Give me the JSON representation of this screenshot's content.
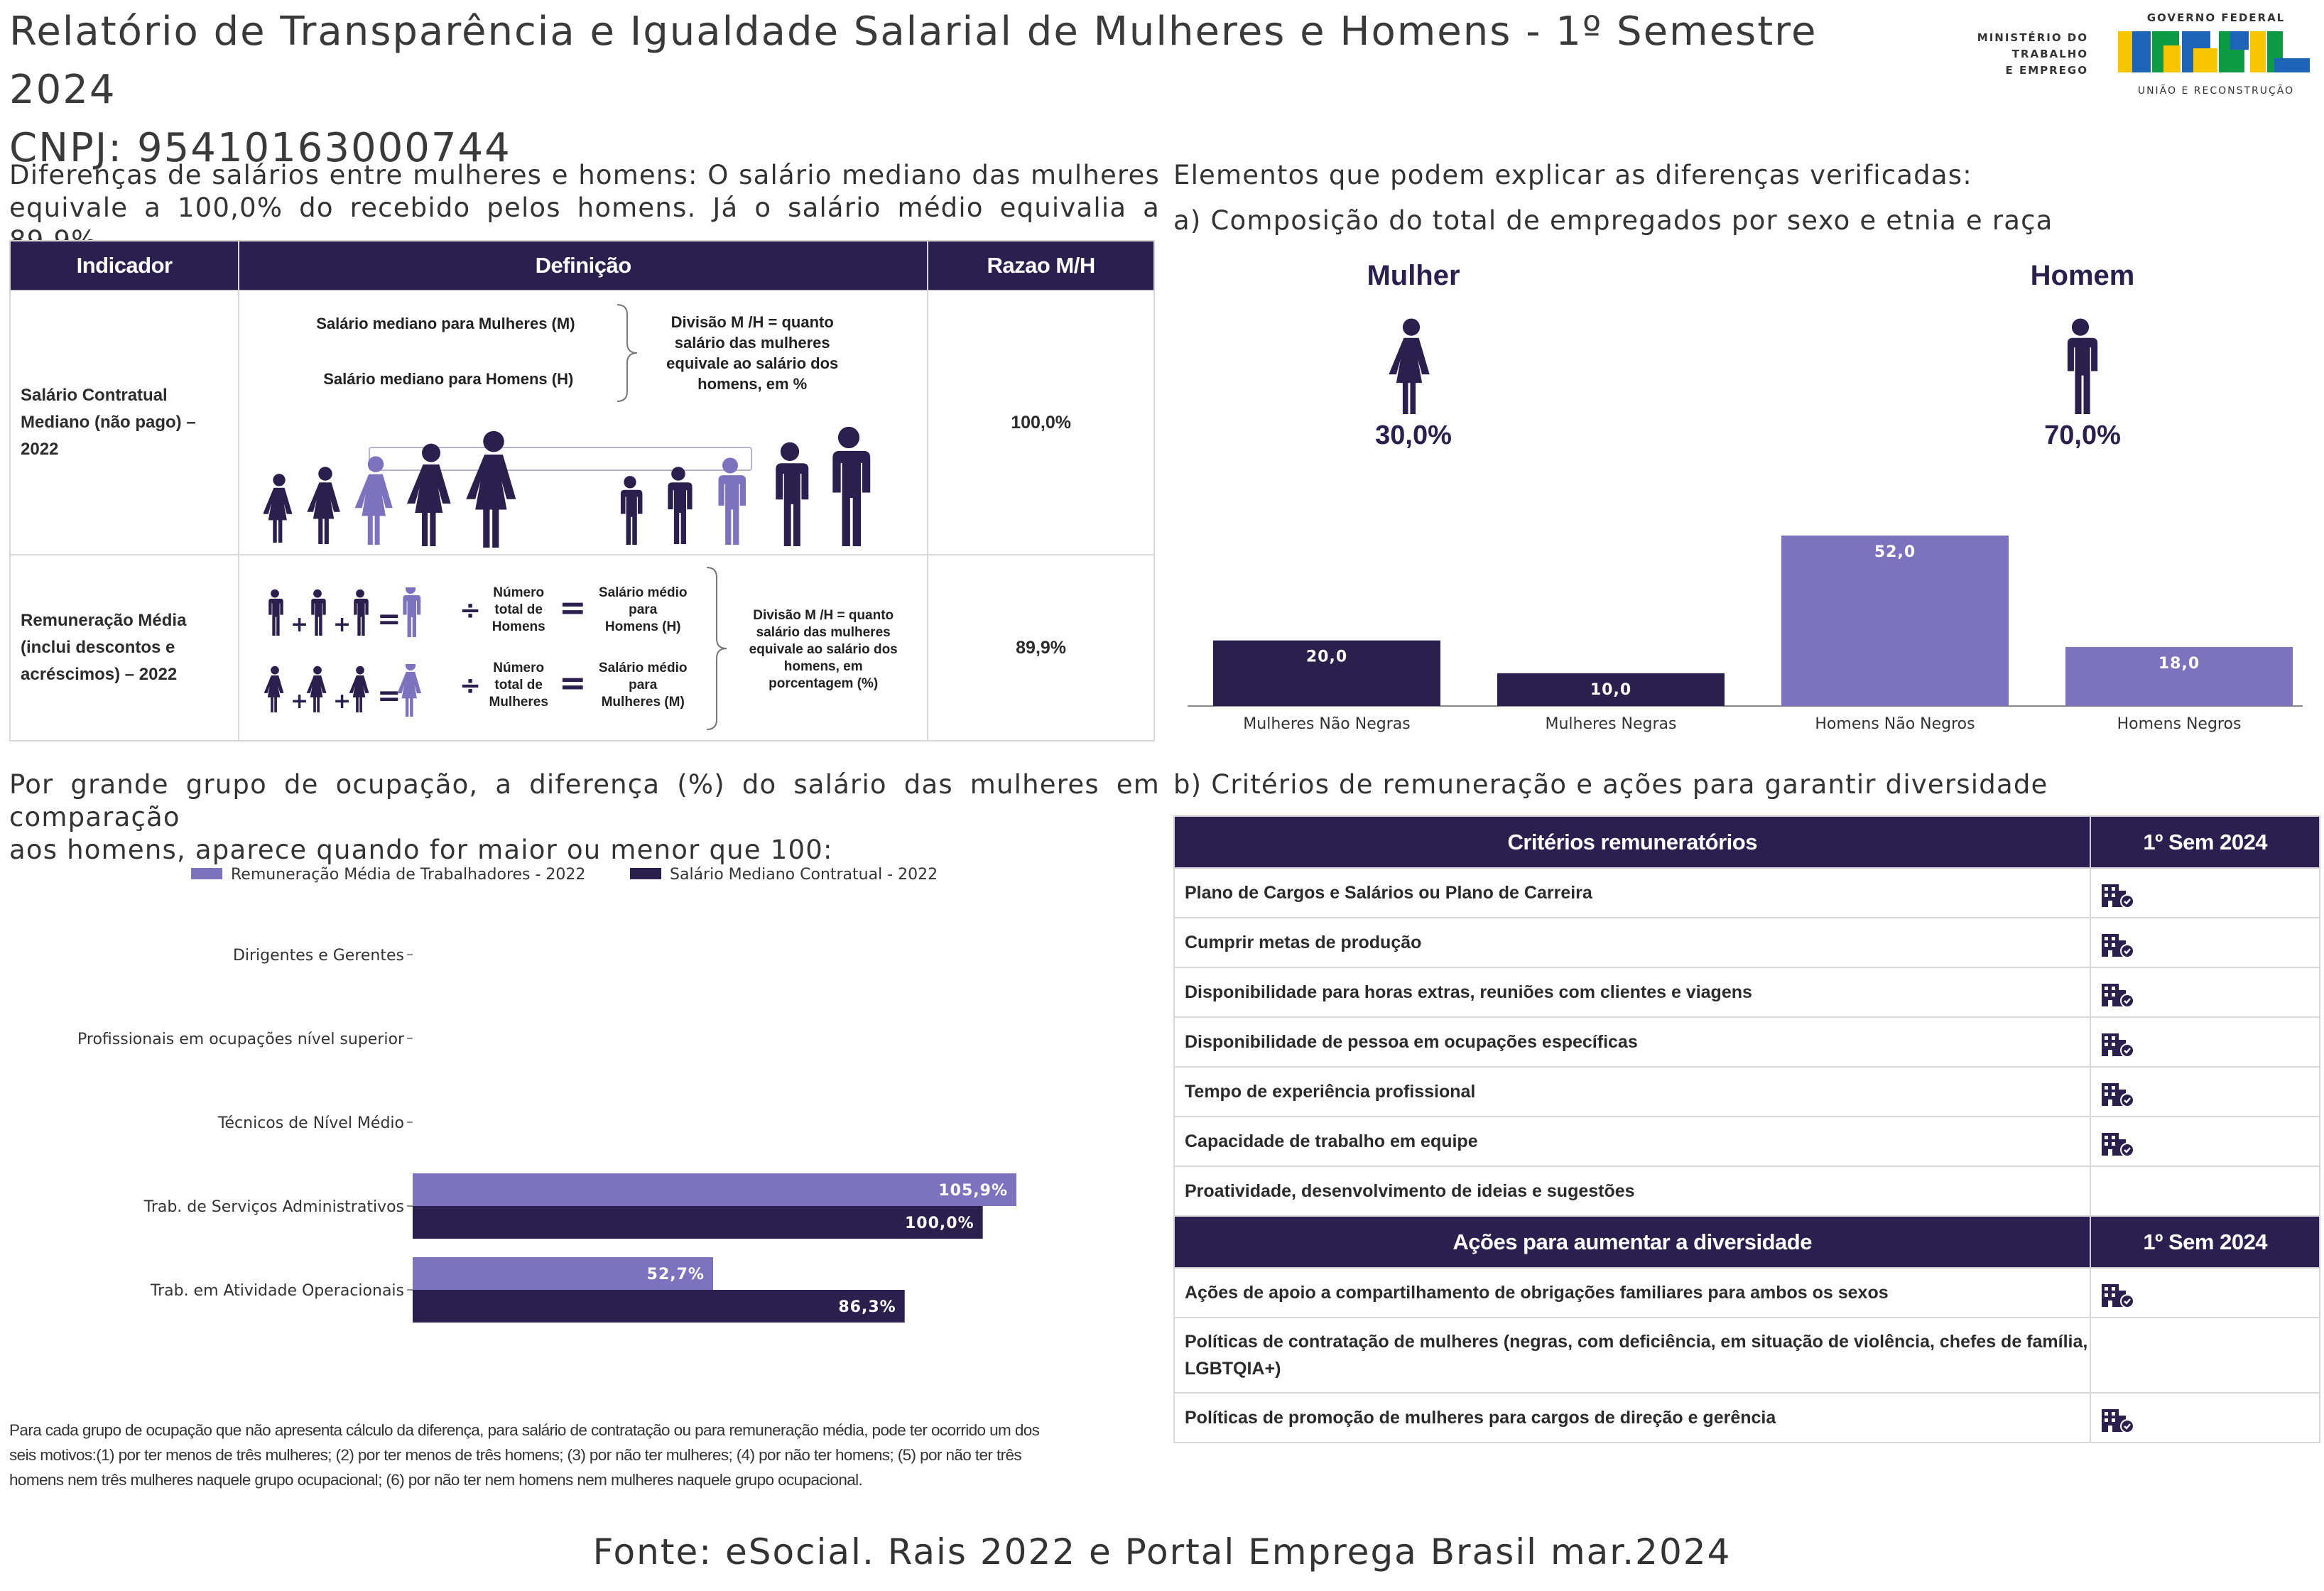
{
  "header": {
    "title_line1": "Relatório de Transparência e Igualdade Salarial de Mulheres e Homens - 1º Semestre 2024",
    "title_line2": "CNPJ: 95410163000744"
  },
  "logos": {
    "ministry_line1": "MINISTÉRIO DO",
    "ministry_line2": "TRABALHO",
    "ministry_line3": "E EMPREGO",
    "gov_top": "GOVERNO FEDERAL",
    "gov_brand": "BRASIL",
    "gov_bottom": "UNIÃO E RECONSTRUÇÃO"
  },
  "left_intro": {
    "line1": "Diferenças de salários entre mulheres e homens: O salário mediano das mulheres",
    "line2": "equivale a 100,0% do recebido pelos homens. Já o salário médio equivalia a 89,9%"
  },
  "indicator_table": {
    "headers": [
      "Indicador",
      "Definição",
      "Razao M/H"
    ],
    "row1": {
      "indicator": "Salário Contratual Mediano (não pago) – 2022",
      "def_women": "Salário mediano para Mulheres (M)",
      "def_men": "Salário mediano para Homens (H)",
      "def_division_l1": "Divisão M /H = quanto",
      "def_division_l2": "salário das mulheres",
      "def_division_l3": "equivale ao salário dos",
      "def_division_l4": "homens, em %",
      "ratio": "100,0%"
    },
    "row2": {
      "indicator": "Remuneração Média (inclui descontos e acréscimos) – 2022",
      "total_men_l1": "Número",
      "total_men_l2": "total de",
      "total_men_l3": "Homens",
      "total_women_l1": "Número",
      "total_women_l2": "total de",
      "total_women_l3": "Mulheres",
      "avg_men_l1": "Salário médio",
      "avg_men_l2": "para",
      "avg_men_l3": "Homens (H)",
      "avg_women_l1": "Salário médio",
      "avg_women_l2": "para",
      "avg_women_l3": "Mulheres (M)",
      "division_l1": "Divisão M /H = quanto",
      "division_l2": "salário das mulheres",
      "division_l3": "equivale ao salário dos",
      "division_l4": "homens, em",
      "division_l5": "porcentagem (%)",
      "ratio": "89,9%"
    }
  },
  "right_intro": {
    "line1": "Elementos que podem explicar as diferenças verificadas:",
    "line2": "a) Composição do total de empregados por sexo e etnia e raça"
  },
  "composition": {
    "woman_label": "Mulher",
    "woman_pct": "30,0%",
    "man_label": "Homem",
    "man_pct": "70,0%"
  },
  "chart_data": [
    {
      "type": "bar",
      "categories": [
        "Mulheres Não Negras",
        "Mulheres Negras",
        "Homens Não Negros",
        "Homens Negros"
      ],
      "values": [
        20.0,
        10.0,
        52.0,
        18.0
      ],
      "value_labels": [
        "20,0",
        "10,0",
        "52,0",
        "18,0"
      ],
      "colors": [
        "#2b1f4e",
        "#2b1f4e",
        "#7d72bd",
        "#7d72bd"
      ],
      "ylim": [
        0,
        52
      ]
    },
    {
      "type": "bar",
      "orientation": "horizontal",
      "categories": [
        "Dirigentes e Gerentes",
        "Profissionais em ocupações nível superior",
        "Técnicos de Nível Médio",
        "Trab. de Serviços Administrativos",
        "Trab. em Atividade Operacionais"
      ],
      "series": [
        {
          "name": "Remuneração Média de Trabalhadores - 2022",
          "color": "#7d72bd",
          "values": [
            null,
            null,
            null,
            105.9,
            52.7
          ],
          "labels": [
            "",
            "",
            "",
            "105,9%",
            "52,7%"
          ]
        },
        {
          "name": "Salário Mediano Contratual - 2022",
          "color": "#2b1f4e",
          "values": [
            null,
            null,
            null,
            100.0,
            86.3
          ],
          "labels": [
            "",
            "",
            "",
            "100,0%",
            "86,3%"
          ]
        }
      ],
      "xlim": [
        0,
        110
      ],
      "legend": "top"
    }
  ],
  "occupation_intro": {
    "line1": "Por grande grupo de ocupação, a diferença (%) do salário das mulheres em comparação",
    "line2": "aos homens, aparece quando for maior ou menor que 100:"
  },
  "criteria_intro": "b) Critérios de remuneração e ações para garantir diversidade",
  "criteria_table": {
    "header_left": "Critérios remuneratórios",
    "header_right": "1º Sem 2024",
    "rows": [
      {
        "label": "Plano de Cargos e Salários ou Plano de Carreira",
        "checked": true
      },
      {
        "label": "Cumprir metas de produção",
        "checked": true
      },
      {
        "label": "Disponibilidade para horas extras, reuniões com clientes e viagens",
        "checked": true
      },
      {
        "label": "Disponibilidade de pessoa em ocupações específicas",
        "checked": true
      },
      {
        "label": "Tempo de experiência profissional",
        "checked": true
      },
      {
        "label": "Capacidade de trabalho em equipe",
        "checked": true
      },
      {
        "label": "Proatividade, desenvolvimento de ideias e sugestões",
        "checked": false
      }
    ]
  },
  "actions_table": {
    "header_left": "Ações para aumentar a diversidade",
    "header_right": "1º Sem 2024",
    "rows": [
      {
        "label": "Ações de apoio a compartilhamento de obrigações familiares para ambos os sexos",
        "checked": true
      },
      {
        "label": "Políticas de contratação de mulheres (negras, com deficiência, em situação de violência, chefes de família, LGBTQIA+)",
        "checked": false
      },
      {
        "label": "Políticas de promoção de mulheres para cargos de direção e gerência",
        "checked": true
      }
    ]
  },
  "footnote": {
    "line1": "Para cada grupo de ocupação que não apresenta cálculo da diferença, para salário de contratação ou para remuneração média, pode ter ocorrido um dos",
    "line2": "seis motivos:(1) por ter menos de três mulheres; (2) por ter menos de três homens; (3) por não ter mulheres; (4) por não ter homens; (5) por não ter três",
    "line3": "homens nem três mulheres naquele grupo ocupacional; (6) por não ter nem homens nem mulheres naquele grupo ocupacional."
  },
  "footer": "Fonte: eSocial. Rais 2022 e Portal Emprega Brasil mar.2024",
  "icons": {
    "check": "building-check-icon",
    "woman": "woman-icon",
    "man": "man-icon"
  }
}
